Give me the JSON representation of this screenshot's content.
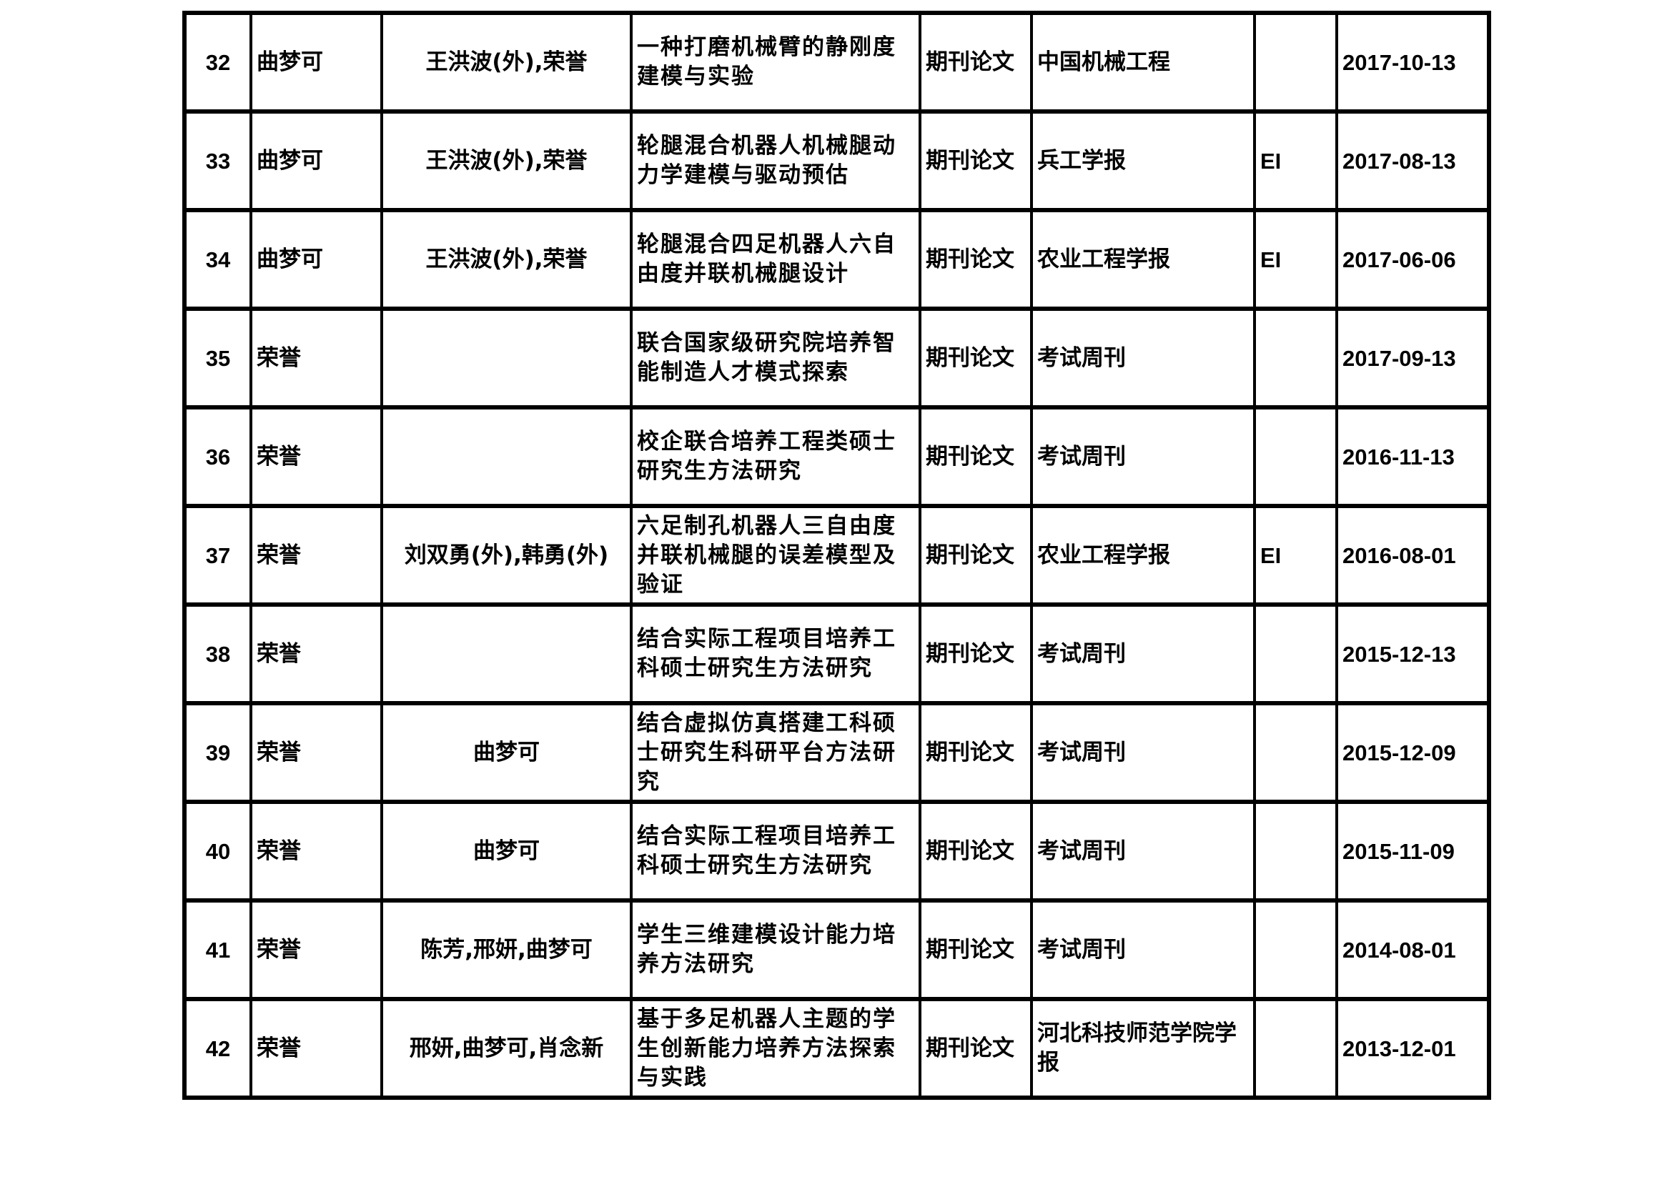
{
  "rows": [
    {
      "no": "32",
      "author": "曲梦可",
      "coauthors": "王洪波(外),荣誉",
      "title": "一种打磨机械臂的静刚度建模与实验",
      "type": "期刊论文",
      "journal": "中国机械工程",
      "index": "",
      "date": "2017-10-13"
    },
    {
      "no": "33",
      "author": "曲梦可",
      "coauthors": "王洪波(外),荣誉",
      "title": "轮腿混合机器人机械腿动力学建模与驱动预估",
      "type": "期刊论文",
      "journal": "兵工学报",
      "index": "EI",
      "date": "2017-08-13"
    },
    {
      "no": "34",
      "author": "曲梦可",
      "coauthors": "王洪波(外),荣誉",
      "title": "轮腿混合四足机器人六自由度并联机械腿设计",
      "type": "期刊论文",
      "journal": "农业工程学报",
      "index": "EI",
      "date": "2017-06-06"
    },
    {
      "no": "35",
      "author": "荣誉",
      "coauthors": "",
      "title": "联合国家级研究院培养智能制造人才模式探索",
      "type": "期刊论文",
      "journal": "考试周刊",
      "index": "",
      "date": "2017-09-13"
    },
    {
      "no": "36",
      "author": "荣誉",
      "coauthors": "",
      "title": "校企联合培养工程类硕士研究生方法研究",
      "type": "期刊论文",
      "journal": "考试周刊",
      "index": "",
      "date": "2016-11-13"
    },
    {
      "no": "37",
      "author": "荣誉",
      "coauthors": "刘双勇(外),韩勇(外)",
      "title": "六足制孔机器人三自由度并联机械腿的误差模型及验证",
      "type": "期刊论文",
      "journal": "农业工程学报",
      "index": "EI",
      "date": "2016-08-01"
    },
    {
      "no": "38",
      "author": "荣誉",
      "coauthors": "",
      "title": "结合实际工程项目培养工科硕士研究生方法研究",
      "type": "期刊论文",
      "journal": "考试周刊",
      "index": "",
      "date": "2015-12-13"
    },
    {
      "no": "39",
      "author": "荣誉",
      "coauthors": "曲梦可",
      "title": "结合虚拟仿真搭建工科硕士研究生科研平台方法研究",
      "type": "期刊论文",
      "journal": "考试周刊",
      "index": "",
      "date": "2015-12-09"
    },
    {
      "no": "40",
      "author": "荣誉",
      "coauthors": "曲梦可",
      "title": "结合实际工程项目培养工科硕士研究生方法研究",
      "type": "期刊论文",
      "journal": "考试周刊",
      "index": "",
      "date": "2015-11-09"
    },
    {
      "no": "41",
      "author": "荣誉",
      "coauthors": "陈芳,邢妍,曲梦可",
      "title": "学生三维建模设计能力培养方法研究",
      "type": "期刊论文",
      "journal": "考试周刊",
      "index": "",
      "date": "2014-08-01"
    },
    {
      "no": "42",
      "author": "荣誉",
      "coauthors": "邢妍,曲梦可,肖念新",
      "title": "基于多足机器人主题的学生创新能力培养方法探索与实践",
      "type": "期刊论文",
      "journal": "河北科技师范学院学报",
      "index": "",
      "date": "2013-12-01"
    }
  ]
}
